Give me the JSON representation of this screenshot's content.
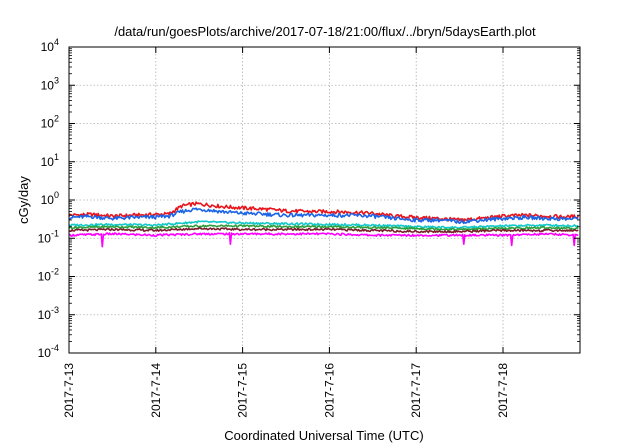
{
  "chart_data": {
    "type": "line",
    "title": "/data/run/goesPlots/archive/2017-07-18/21:00/flux/../bryn/5daysEarth.plot",
    "xlabel": "Coordinated Universal Time (UTC)",
    "ylabel": "cGy/day",
    "yscale": "log",
    "ylim": [
      0.0001,
      10000
    ],
    "xlim": [
      "2017-07-13",
      "2017-07-18T21:00"
    ],
    "grid": true,
    "legend": "none",
    "x_ticks": [
      {
        "label": "2017-7-13",
        "day": 0
      },
      {
        "label": "2017-7-14",
        "day": 1
      },
      {
        "label": "2017-7-15",
        "day": 2
      },
      {
        "label": "2017-7-16",
        "day": 3
      },
      {
        "label": "2017-7-17",
        "day": 4
      },
      {
        "label": "2017-7-18",
        "day": 5
      }
    ],
    "y_ticks": [
      {
        "base": "10",
        "exp": "-4",
        "value": 0.0001
      },
      {
        "base": "10",
        "exp": "-3",
        "value": 0.001
      },
      {
        "base": "10",
        "exp": "-2",
        "value": 0.01
      },
      {
        "base": "10",
        "exp": "-1",
        "value": 0.1
      },
      {
        "base": "10",
        "exp": "0",
        "value": 1
      },
      {
        "base": "10",
        "exp": "1",
        "value": 10
      },
      {
        "base": "10",
        "exp": "2",
        "value": 100
      },
      {
        "base": "10",
        "exp": "3",
        "value": 1000
      },
      {
        "base": "10",
        "exp": "4",
        "value": 10000
      }
    ],
    "series": [
      {
        "color": "#e8141c",
        "x": [
          0,
          0.25,
          0.5,
          0.75,
          1.0,
          1.15,
          1.3,
          1.45,
          1.6,
          1.75,
          2.0,
          2.25,
          2.5,
          2.75,
          3.0,
          3.25,
          3.5,
          3.75,
          4.0,
          4.25,
          4.5,
          4.75,
          5.0,
          5.25,
          5.5,
          5.75,
          5.875
        ],
        "values": [
          0.4,
          0.42,
          0.38,
          0.4,
          0.42,
          0.43,
          0.7,
          0.8,
          0.75,
          0.68,
          0.62,
          0.58,
          0.52,
          0.5,
          0.5,
          0.48,
          0.45,
          0.38,
          0.35,
          0.33,
          0.3,
          0.33,
          0.38,
          0.4,
          0.38,
          0.36,
          0.38
        ]
      },
      {
        "color": "#1c64e6",
        "x": [
          0,
          0.25,
          0.5,
          0.75,
          1.0,
          1.15,
          1.3,
          1.45,
          1.6,
          1.75,
          2.0,
          2.25,
          2.5,
          2.75,
          3.0,
          3.25,
          3.5,
          3.75,
          4.0,
          4.25,
          4.5,
          4.75,
          5.0,
          5.25,
          5.5,
          5.75,
          5.875
        ],
        "values": [
          0.35,
          0.37,
          0.33,
          0.35,
          0.36,
          0.38,
          0.5,
          0.58,
          0.55,
          0.5,
          0.45,
          0.43,
          0.4,
          0.4,
          0.4,
          0.4,
          0.38,
          0.33,
          0.3,
          0.3,
          0.27,
          0.3,
          0.33,
          0.35,
          0.33,
          0.32,
          0.33
        ]
      },
      {
        "color": "#12c8c8",
        "x": [
          0,
          0.5,
          1.0,
          1.5,
          2.0,
          2.5,
          3.0,
          3.5,
          4.0,
          4.5,
          5.0,
          5.5,
          5.875
        ],
        "values": [
          0.22,
          0.23,
          0.22,
          0.27,
          0.25,
          0.24,
          0.23,
          0.22,
          0.2,
          0.19,
          0.21,
          0.22,
          0.21
        ]
      },
      {
        "color": "#2e9e3a",
        "x": [
          0,
          0.5,
          1.0,
          1.5,
          2.0,
          2.5,
          3.0,
          3.5,
          4.0,
          4.5,
          5.0,
          5.5,
          5.875
        ],
        "values": [
          0.19,
          0.2,
          0.19,
          0.21,
          0.21,
          0.2,
          0.2,
          0.19,
          0.18,
          0.17,
          0.18,
          0.19,
          0.18
        ]
      },
      {
        "color": "#7a1e2c",
        "x": [
          0,
          0.5,
          1.0,
          1.5,
          2.0,
          2.5,
          3.0,
          3.5,
          4.0,
          4.5,
          5.0,
          5.5,
          5.875
        ],
        "values": [
          0.16,
          0.17,
          0.16,
          0.18,
          0.17,
          0.17,
          0.17,
          0.16,
          0.15,
          0.15,
          0.16,
          0.16,
          0.16
        ]
      },
      {
        "color": "#ff00ff",
        "x": [
          0,
          0.5,
          1.0,
          1.5,
          2.0,
          2.5,
          3.0,
          3.5,
          4.0,
          4.5,
          5.0,
          5.5,
          5.875
        ],
        "values": [
          0.12,
          0.13,
          0.12,
          0.13,
          0.13,
          0.13,
          0.13,
          0.12,
          0.12,
          0.12,
          0.12,
          0.13,
          0.12
        ],
        "dips": [
          {
            "x": 0.38,
            "value": 0.06
          },
          {
            "x": 1.86,
            "value": 0.07
          },
          {
            "x": 4.55,
            "value": 0.07
          },
          {
            "x": 5.1,
            "value": 0.065
          },
          {
            "x": 5.82,
            "value": 0.065
          }
        ]
      }
    ]
  }
}
